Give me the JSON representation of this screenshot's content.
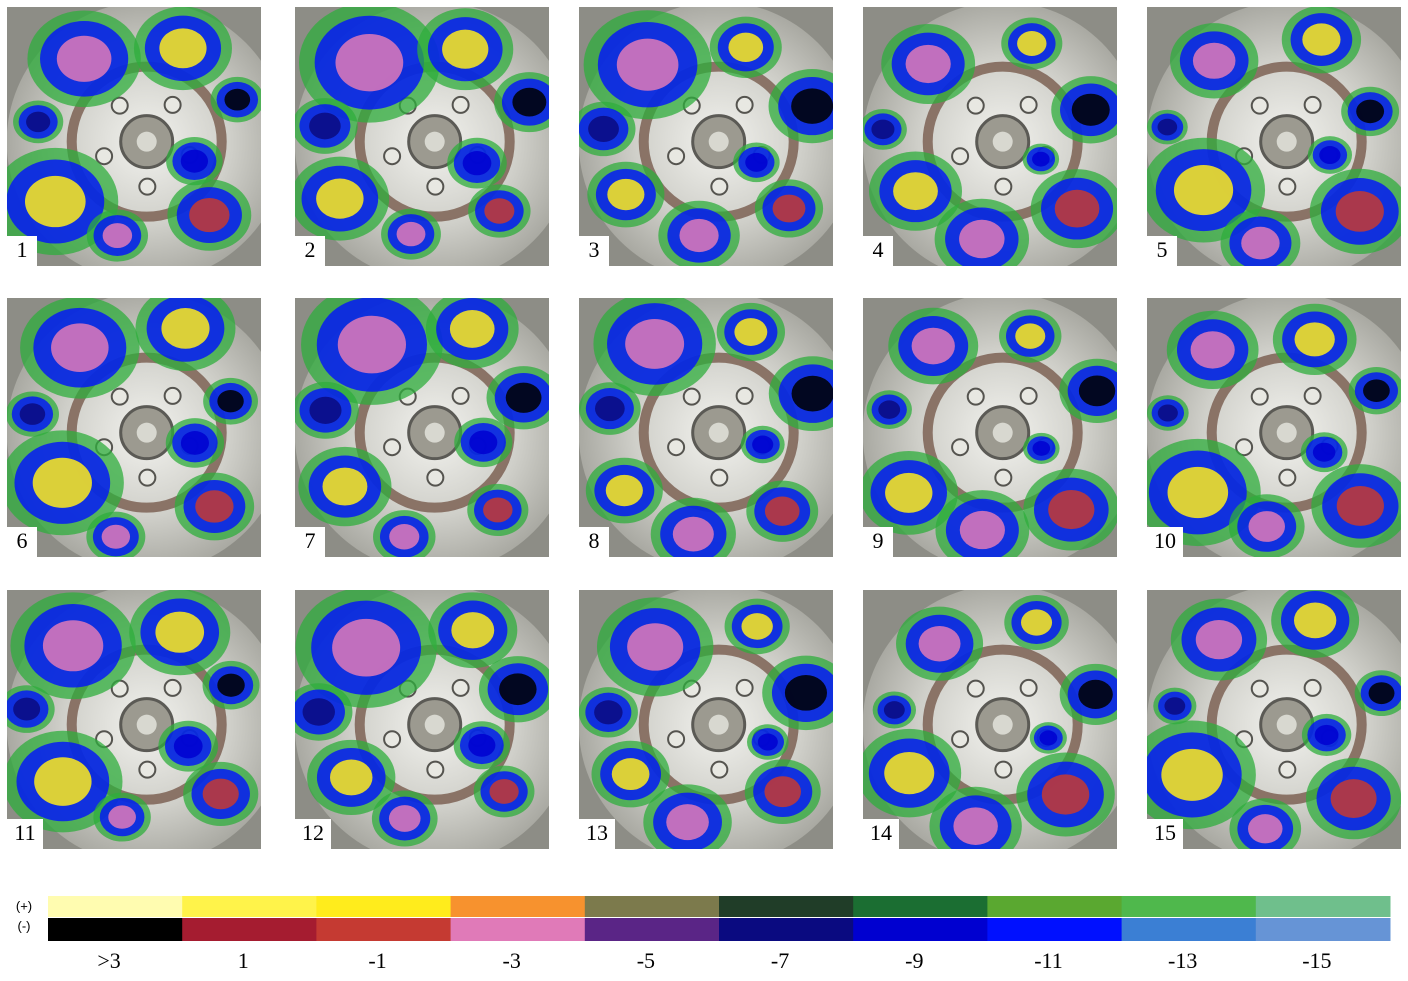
{
  "panels": [
    "1",
    "2",
    "3",
    "4",
    "5",
    "6",
    "7",
    "8",
    "9",
    "10",
    "11",
    "12",
    "13",
    "14",
    "15"
  ],
  "legend": {
    "plus_label": "(+)",
    "minus_label": "(-)",
    "plus_colors": [
      "#fffcb0",
      "#fff34a",
      "#ffec1c",
      "#f7922e",
      "#7c7a4c",
      "#203d28",
      "#1b6e32",
      "#5aa830",
      "#4fb84c",
      "#6fbf8c"
    ],
    "minus_colors": [
      "#000000",
      "#a51c30",
      "#c53a32",
      "#e07ab8",
      "#5a2586",
      "#0a0a80",
      "#0000d0",
      "#0010ff",
      "#3b7fd4",
      "#6694d6"
    ],
    "labels": [
      ">3",
      "1",
      "-1",
      "-3",
      "-5",
      "-7",
      "-9",
      "-11",
      "-13",
      "-15"
    ]
  }
}
